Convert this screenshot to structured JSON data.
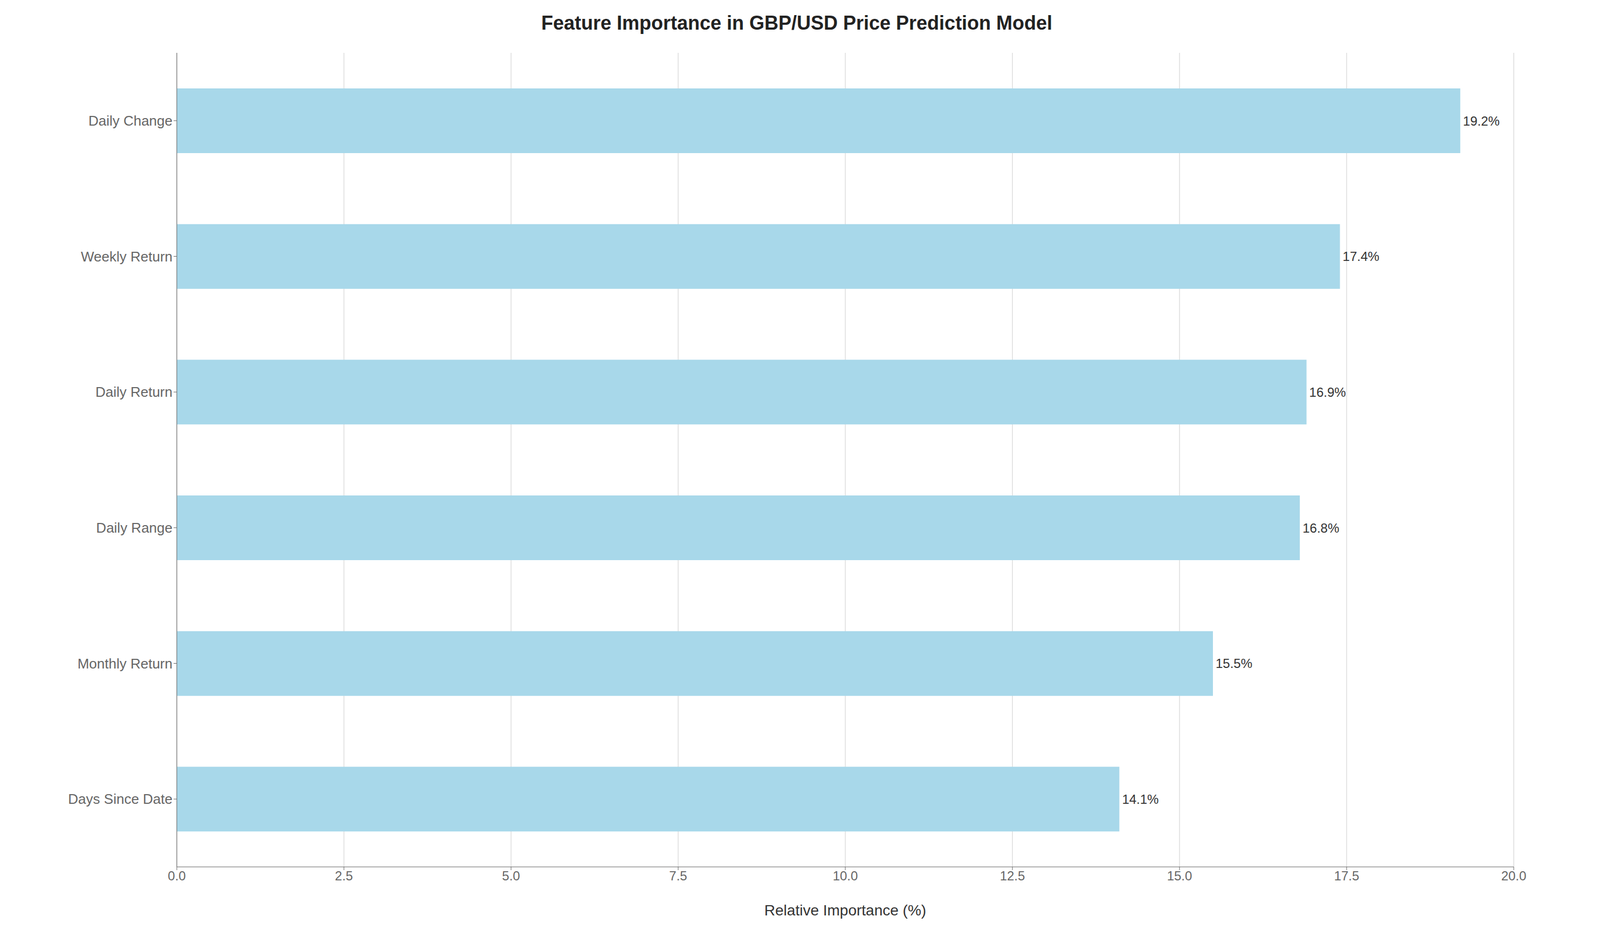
{
  "chart_data": {
    "type": "bar",
    "orientation": "horizontal",
    "title": "Feature Importance in GBP/USD Price Prediction Model",
    "categories": [
      "Days Since Date",
      "Monthly Return",
      "Daily Range",
      "Daily Return",
      "Weekly Return",
      "Daily Change"
    ],
    "values": [
      14.1,
      15.5,
      16.8,
      16.9,
      17.4,
      19.2
    ],
    "value_labels": [
      "14.1%",
      "15.5%",
      "16.8%",
      "16.9%",
      "17.4%",
      "19.2%"
    ],
    "data_labels": true,
    "color": "#a8d8ea",
    "xlabel": "Relative Importance (%)",
    "xlim": [
      0,
      20.0
    ],
    "xticks": [
      {
        "value": 0.0,
        "label": "0.0"
      },
      2.5,
      {
        "value": 5.0,
        "label": "5.0"
      },
      7.5,
      {
        "value": 10.0,
        "label": "10.0"
      },
      12.5,
      {
        "value": 15.0,
        "label": "15.0"
      },
      17.5,
      {
        "value": 20.0,
        "label": "20.0"
      }
    ],
    "grid": true
  }
}
